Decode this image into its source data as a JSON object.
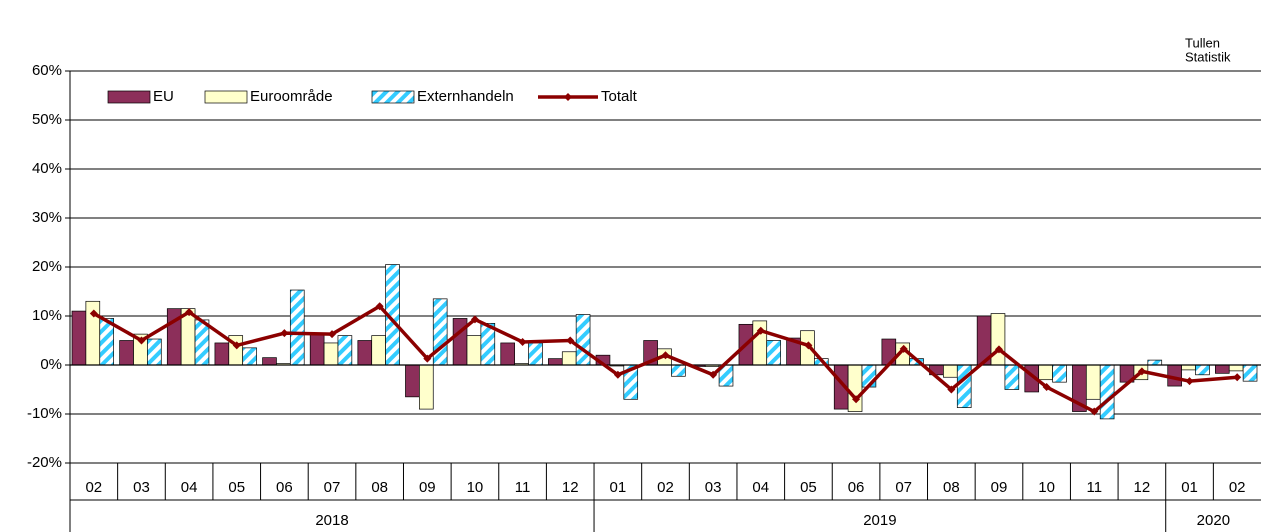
{
  "chart_data": {
    "type": "bar",
    "source": [
      "Tullen",
      "Statistik"
    ],
    "groups": [
      {
        "label": "2018",
        "categories": [
          "02",
          "03",
          "04",
          "05",
          "06",
          "07",
          "08",
          "09",
          "10",
          "11",
          "12"
        ]
      },
      {
        "label": "2019",
        "categories": [
          "01",
          "02",
          "03",
          "04",
          "05",
          "06",
          "07",
          "08",
          "09",
          "10",
          "11",
          "12"
        ]
      },
      {
        "label": "2020",
        "categories": [
          "01",
          "02"
        ]
      }
    ],
    "series": [
      {
        "name": "EU",
        "color": "#8c2f5a",
        "values": [
          11,
          5,
          11.5,
          4.5,
          1.5,
          6.5,
          5,
          -6.5,
          9.5,
          4.5,
          1.3,
          2,
          5,
          -0.3,
          8.3,
          5.5,
          -9,
          5.3,
          -2,
          10,
          -5.5,
          -9.5,
          -3.5,
          -4.3,
          -1.7
        ]
      },
      {
        "name": "Euroområde",
        "color": "#ffffcc",
        "values": [
          13,
          6.3,
          11.5,
          6,
          0.3,
          4.5,
          6,
          -9,
          6,
          0.3,
          2.7,
          -0.2,
          3.3,
          -0.3,
          9,
          7,
          -9.5,
          4.5,
          -2.5,
          10.5,
          -3,
          -7,
          -3,
          -1,
          -1.2
        ]
      },
      {
        "name": "Externhandeln",
        "color": "#33ccff",
        "pattern": "hatch",
        "values": [
          9.5,
          5.3,
          9.2,
          3.5,
          15.3,
          6,
          20.5,
          13.5,
          8.5,
          4.5,
          10.3,
          -7,
          -2.3,
          -4.3,
          5,
          1.3,
          -4.5,
          1.3,
          -8.7,
          -5,
          -3.5,
          -11,
          1,
          -2,
          -3.3
        ]
      },
      {
        "name": "Totalt",
        "type": "line",
        "color": "#8b0000",
        "values": [
          10.5,
          5,
          10.8,
          4,
          6.5,
          6.3,
          12,
          1.3,
          9.3,
          4.7,
          5,
          -2,
          2,
          -2,
          7,
          4,
          -7,
          3.3,
          -5,
          3.2,
          -4.5,
          -9.5,
          -1.3,
          -3.3,
          -2.5
        ]
      }
    ],
    "ylim": [
      -20,
      60
    ],
    "yticks": [
      {
        "value": -20,
        "label": "-20%"
      },
      {
        "value": -10,
        "label": "-10%"
      },
      {
        "value": 0,
        "label": "0%"
      },
      {
        "value": 10,
        "label": "10%"
      },
      {
        "value": 20,
        "label": "20%"
      },
      {
        "value": 30,
        "label": "30%"
      },
      {
        "value": 40,
        "label": "40%"
      },
      {
        "value": 50,
        "label": "50%"
      },
      {
        "value": 60,
        "label": "60%"
      }
    ],
    "grid": true,
    "legend": "top-left"
  }
}
